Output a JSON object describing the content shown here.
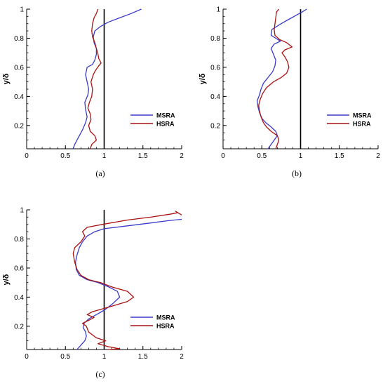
{
  "figure": {
    "colors": {
      "MSRA": "#3a3ac8",
      "HSRA": "#aa1111",
      "reference": "#000000"
    }
  },
  "chart_data": [
    {
      "type": "line",
      "caption": "(a)",
      "ylabel": "y/δ",
      "xlabel": "",
      "xlim": [
        0,
        2
      ],
      "ylim": [
        0.04,
        1
      ],
      "xticks": [
        "0",
        "0.5",
        "1",
        "1.5",
        "2"
      ],
      "yticks": [
        "0.2",
        "0.4",
        "0.6",
        "0.8",
        "1"
      ],
      "legend": {
        "position": "right-center",
        "entries": [
          "MSRA",
          "HSRA"
        ]
      },
      "reference_line_x": 1,
      "series": [
        {
          "name": "MSRA",
          "points": [
            [
              0.6,
              0.04
            ],
            [
              0.62,
              0.07
            ],
            [
              0.65,
              0.1
            ],
            [
              0.68,
              0.13
            ],
            [
              0.72,
              0.17
            ],
            [
              0.76,
              0.22
            ],
            [
              0.78,
              0.26
            ],
            [
              0.76,
              0.31
            ],
            [
              0.75,
              0.36
            ],
            [
              0.79,
              0.41
            ],
            [
              0.8,
              0.45
            ],
            [
              0.78,
              0.5
            ],
            [
              0.76,
              0.55
            ],
            [
              0.78,
              0.6
            ],
            [
              0.85,
              0.62
            ],
            [
              0.88,
              0.65
            ],
            [
              0.9,
              0.69
            ],
            [
              0.9,
              0.73
            ],
            [
              0.87,
              0.77
            ],
            [
              0.86,
              0.81
            ],
            [
              0.88,
              0.85
            ],
            [
              0.95,
              0.88
            ],
            [
              1.05,
              0.91
            ],
            [
              1.2,
              0.94
            ],
            [
              1.35,
              0.97
            ],
            [
              1.48,
              1.0
            ]
          ]
        },
        {
          "name": "HSRA",
          "points": [
            [
              0.82,
              0.04
            ],
            [
              0.84,
              0.07
            ],
            [
              0.9,
              0.1
            ],
            [
              0.88,
              0.13
            ],
            [
              0.82,
              0.16
            ],
            [
              0.8,
              0.2
            ],
            [
              0.83,
              0.24
            ],
            [
              0.82,
              0.28
            ],
            [
              0.79,
              0.32
            ],
            [
              0.81,
              0.36
            ],
            [
              0.84,
              0.4
            ],
            [
              0.85,
              0.45
            ],
            [
              0.83,
              0.5
            ],
            [
              0.86,
              0.55
            ],
            [
              0.89,
              0.58
            ],
            [
              0.93,
              0.61
            ],
            [
              0.96,
              0.63
            ],
            [
              0.93,
              0.66
            ],
            [
              0.92,
              0.69
            ],
            [
              0.9,
              0.73
            ],
            [
              0.88,
              0.77
            ],
            [
              0.85,
              0.81
            ],
            [
              0.84,
              0.85
            ],
            [
              0.85,
              0.9
            ],
            [
              0.87,
              0.94
            ],
            [
              0.9,
              0.97
            ],
            [
              0.92,
              1.0
            ]
          ]
        }
      ]
    },
    {
      "type": "line",
      "caption": "(b)",
      "ylabel": "y/δ",
      "xlabel": "",
      "xlim": [
        0,
        2
      ],
      "ylim": [
        0.04,
        1
      ],
      "xticks": [
        "0",
        "0.5",
        "1",
        "1.5",
        "2"
      ],
      "yticks": [
        "0.2",
        "0.4",
        "0.6",
        "0.8",
        "1"
      ],
      "legend": {
        "position": "right-center",
        "entries": [
          "MSRA",
          "HSRA"
        ]
      },
      "reference_line_x": 1,
      "series": [
        {
          "name": "MSRA",
          "points": [
            [
              0.58,
              0.04
            ],
            [
              0.62,
              0.07
            ],
            [
              0.66,
              0.1
            ],
            [
              0.7,
              0.13
            ],
            [
              0.68,
              0.16
            ],
            [
              0.62,
              0.19
            ],
            [
              0.55,
              0.22
            ],
            [
              0.5,
              0.25
            ],
            [
              0.47,
              0.29
            ],
            [
              0.45,
              0.33
            ],
            [
              0.44,
              0.37
            ],
            [
              0.47,
              0.41
            ],
            [
              0.49,
              0.45
            ],
            [
              0.52,
              0.49
            ],
            [
              0.58,
              0.53
            ],
            [
              0.64,
              0.57
            ],
            [
              0.67,
              0.61
            ],
            [
              0.68,
              0.65
            ],
            [
              0.65,
              0.69
            ],
            [
              0.62,
              0.73
            ],
            [
              0.66,
              0.76
            ],
            [
              0.74,
              0.78
            ],
            [
              0.68,
              0.8
            ],
            [
              0.62,
              0.82
            ],
            [
              0.63,
              0.86
            ],
            [
              0.75,
              0.9
            ],
            [
              0.85,
              0.93
            ],
            [
              0.95,
              0.96
            ],
            [
              1.02,
              0.98
            ],
            [
              1.08,
              1.0
            ]
          ]
        },
        {
          "name": "HSRA",
          "points": [
            [
              0.68,
              0.04
            ],
            [
              0.7,
              0.07
            ],
            [
              0.72,
              0.1
            ],
            [
              0.7,
              0.13
            ],
            [
              0.62,
              0.16
            ],
            [
              0.56,
              0.19
            ],
            [
              0.52,
              0.22
            ],
            [
              0.49,
              0.26
            ],
            [
              0.47,
              0.3
            ],
            [
              0.46,
              0.34
            ],
            [
              0.48,
              0.38
            ],
            [
              0.51,
              0.42
            ],
            [
              0.56,
              0.46
            ],
            [
              0.65,
              0.5
            ],
            [
              0.75,
              0.53
            ],
            [
              0.82,
              0.56
            ],
            [
              0.85,
              0.6
            ],
            [
              0.83,
              0.64
            ],
            [
              0.8,
              0.67
            ],
            [
              0.76,
              0.7
            ],
            [
              0.8,
              0.72
            ],
            [
              0.89,
              0.74
            ],
            [
              0.82,
              0.77
            ],
            [
              0.73,
              0.79
            ],
            [
              0.67,
              0.82
            ],
            [
              0.66,
              0.86
            ],
            [
              0.67,
              0.9
            ],
            [
              0.68,
              0.94
            ],
            [
              0.69,
              0.98
            ],
            [
              0.72,
              1.0
            ]
          ]
        }
      ]
    },
    {
      "type": "line",
      "caption": "(c)",
      "ylabel": "y/δ",
      "xlabel": "",
      "xlim": [
        0,
        2
      ],
      "ylim": [
        0.04,
        1
      ],
      "xticks": [
        "0",
        "0.5",
        "1",
        "1.5",
        "2"
      ],
      "yticks": [
        "0.2",
        "0.4",
        "0.6",
        "0.8",
        "1"
      ],
      "legend": {
        "position": "right-center",
        "entries": [
          "MSRA",
          "HSRA"
        ]
      },
      "reference_line_x": 1,
      "series": [
        {
          "name": "MSRA",
          "points": [
            [
              0.65,
              0.04
            ],
            [
              0.7,
              0.07
            ],
            [
              0.75,
              0.1
            ],
            [
              0.77,
              0.13
            ],
            [
              0.76,
              0.16
            ],
            [
              0.73,
              0.19
            ],
            [
              0.74,
              0.22
            ],
            [
              0.8,
              0.25
            ],
            [
              0.9,
              0.28
            ],
            [
              1.0,
              0.31
            ],
            [
              1.1,
              0.35
            ],
            [
              1.2,
              0.4
            ],
            [
              1.17,
              0.44
            ],
            [
              1.06,
              0.47
            ],
            [
              0.92,
              0.5
            ],
            [
              0.78,
              0.52
            ],
            [
              0.68,
              0.55
            ],
            [
              0.64,
              0.59
            ],
            [
              0.63,
              0.64
            ],
            [
              0.65,
              0.69
            ],
            [
              0.68,
              0.74
            ],
            [
              0.72,
              0.78
            ],
            [
              0.78,
              0.82
            ],
            [
              0.88,
              0.85
            ],
            [
              1.0,
              0.87
            ],
            [
              1.3,
              0.89
            ],
            [
              1.6,
              0.91
            ],
            [
              1.82,
              0.925
            ],
            [
              2.0,
              0.935
            ]
          ]
        },
        {
          "name": "HSRA",
          "points": [
            [
              1.05,
              0.04
            ],
            [
              1.2,
              0.045
            ],
            [
              1.05,
              0.06
            ],
            [
              0.92,
              0.08
            ],
            [
              1.02,
              0.1
            ],
            [
              0.9,
              0.12
            ],
            [
              0.8,
              0.16
            ],
            [
              0.77,
              0.2
            ],
            [
              0.72,
              0.22
            ],
            [
              0.8,
              0.24
            ],
            [
              0.87,
              0.26
            ],
            [
              0.78,
              0.28
            ],
            [
              0.85,
              0.3
            ],
            [
              1.05,
              0.33
            ],
            [
              1.3,
              0.37
            ],
            [
              1.38,
              0.4
            ],
            [
              1.3,
              0.44
            ],
            [
              1.1,
              0.47
            ],
            [
              0.95,
              0.5
            ],
            [
              0.8,
              0.52
            ],
            [
              0.7,
              0.55
            ],
            [
              0.65,
              0.59
            ],
            [
              0.62,
              0.64
            ],
            [
              0.6,
              0.7
            ],
            [
              0.62,
              0.74
            ],
            [
              0.7,
              0.78
            ],
            [
              0.75,
              0.82
            ],
            [
              0.72,
              0.85
            ],
            [
              0.78,
              0.88
            ],
            [
              0.98,
              0.9
            ],
            [
              1.3,
              0.93
            ],
            [
              1.6,
              0.95
            ],
            [
              1.85,
              0.97
            ],
            [
              1.95,
              0.98
            ],
            [
              1.92,
              0.99
            ],
            [
              2.0,
              0.965
            ]
          ]
        }
      ]
    }
  ]
}
